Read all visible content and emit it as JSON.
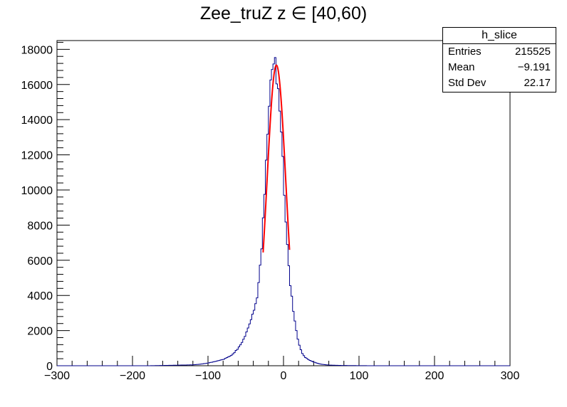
{
  "chart_data": {
    "type": "histogram",
    "title": "Zee_truZ z  ∈ [40,60)",
    "xlabel": "",
    "ylabel": "",
    "xlim": [
      -300,
      300
    ],
    "ylim": [
      0,
      18500
    ],
    "xticks": [
      -300,
      -200,
      -100,
      0,
      100,
      200,
      300
    ],
    "xtick_labels": [
      "−300",
      "−200",
      "−100",
      "0",
      "100",
      "200",
      "300"
    ],
    "yticks": [
      0,
      2000,
      4000,
      6000,
      8000,
      10000,
      12000,
      14000,
      16000,
      18000
    ],
    "ytick_labels": [
      "0",
      "2000",
      "4000",
      "6000",
      "8000",
      "10000",
      "12000",
      "14000",
      "16000",
      "18000"
    ],
    "grid": false,
    "histogram": {
      "name": "h_slice",
      "color": "#00008b",
      "bin_width": 2,
      "x": [
        -120,
        -110,
        -100,
        -90,
        -80,
        -70,
        -66,
        -62,
        -58,
        -54,
        -50,
        -46,
        -42,
        -38,
        -34,
        -32,
        -30,
        -28,
        -26,
        -24,
        -22,
        -20,
        -18,
        -16,
        -14,
        -12,
        -10,
        -8,
        -6,
        -4,
        -2,
        0,
        2,
        4,
        6,
        8,
        10,
        12,
        14,
        16,
        18,
        20,
        22,
        24,
        26,
        28,
        30,
        34,
        38,
        42,
        46,
        50,
        55,
        60,
        70,
        80,
        90,
        100,
        120
      ],
      "y": [
        50,
        90,
        150,
        250,
        350,
        550,
        700,
        900,
        1100,
        1400,
        1800,
        2200,
        2800,
        3300,
        4200,
        5100,
        6200,
        7500,
        9000,
        10500,
        12400,
        14200,
        15800,
        17000,
        17600,
        17400,
        17000,
        16000,
        15200,
        14000,
        12400,
        10800,
        9200,
        7600,
        6300,
        5000,
        4200,
        3500,
        2800,
        2200,
        1700,
        1300,
        1000,
        800,
        620,
        520,
        430,
        330,
        240,
        180,
        130,
        90,
        60,
        40,
        25,
        15,
        10,
        5,
        0
      ]
    },
    "fit": {
      "type": "gaussian",
      "color": "#ff0000",
      "range": [
        -27,
        8
      ],
      "amplitude": 17100,
      "mean": -9.4,
      "sigma": 12.6
    },
    "stats_box": {
      "title": "h_slice",
      "rows": [
        {
          "label": "Entries",
          "value": "215525"
        },
        {
          "label": "Mean",
          "value": "−9.191"
        },
        {
          "label": "Std Dev",
          "value": "22.17"
        }
      ]
    }
  }
}
